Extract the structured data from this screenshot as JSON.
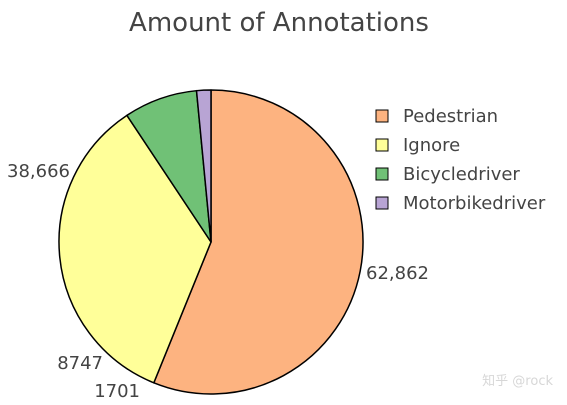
{
  "chart_data": {
    "type": "pie",
    "title": "Amount of Annotations",
    "categories": [
      "Pedestrian",
      "Ignore",
      "Bicycledriver",
      "Motorbikedriver"
    ],
    "values": [
      62862,
      38666,
      8747,
      1701
    ],
    "value_labels": [
      "62,862",
      "38,666",
      "8747",
      "1701"
    ],
    "colors": [
      "#fdb380",
      "#ffff99",
      "#70c176",
      "#b8a4d4"
    ],
    "legend_position": "right",
    "start_angle_deg": 0,
    "direction": "clockwise"
  },
  "watermark": "知乎 @rock"
}
